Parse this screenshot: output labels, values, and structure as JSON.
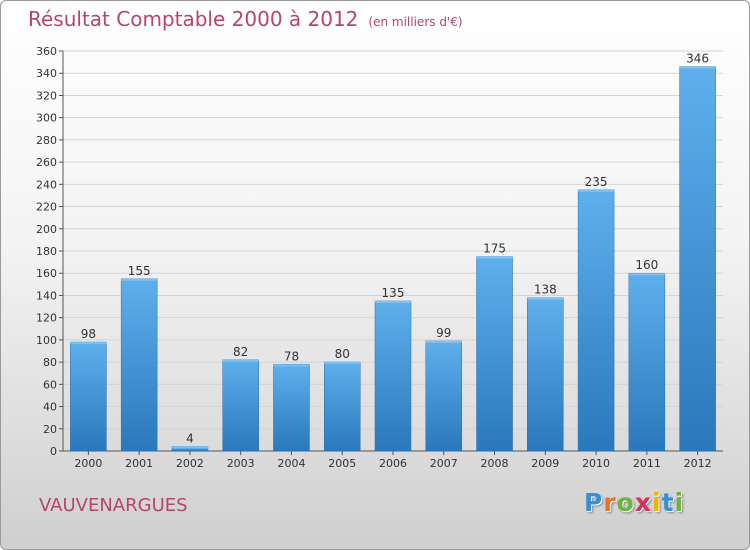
{
  "title": "Résultat Comptable 2000 à 2012",
  "subtitle": "(en milliers d'€)",
  "commune": "VAUVENARGUES",
  "logo": {
    "letters": [
      "P",
      "r",
      "o",
      "x",
      "i",
      "t",
      "i"
    ],
    "colors": [
      "#3a8fd4",
      "#e8702a",
      "#6db33f",
      "#d6305a",
      "#f0b400",
      "#3a8fd4",
      "#6db33f"
    ]
  },
  "colors": {
    "bar": "#4a9fe0",
    "bar_dark": "#2c7bbf",
    "accent": "#b5456c"
  },
  "chart_data": {
    "type": "bar",
    "categories": [
      "2000",
      "2001",
      "2002",
      "2003",
      "2004",
      "2005",
      "2006",
      "2007",
      "2008",
      "2009",
      "2010",
      "2011",
      "2012"
    ],
    "values": [
      98,
      155,
      4,
      82,
      78,
      80,
      135,
      99,
      175,
      138,
      235,
      160,
      346
    ],
    "title": "Résultat Comptable 2000 à 2012",
    "xlabel": "",
    "ylabel": "",
    "ylim": [
      0,
      360
    ],
    "yticks": [
      0,
      20,
      40,
      60,
      80,
      100,
      120,
      140,
      160,
      180,
      200,
      220,
      240,
      260,
      280,
      300,
      320,
      340,
      360
    ],
    "grid": true
  }
}
